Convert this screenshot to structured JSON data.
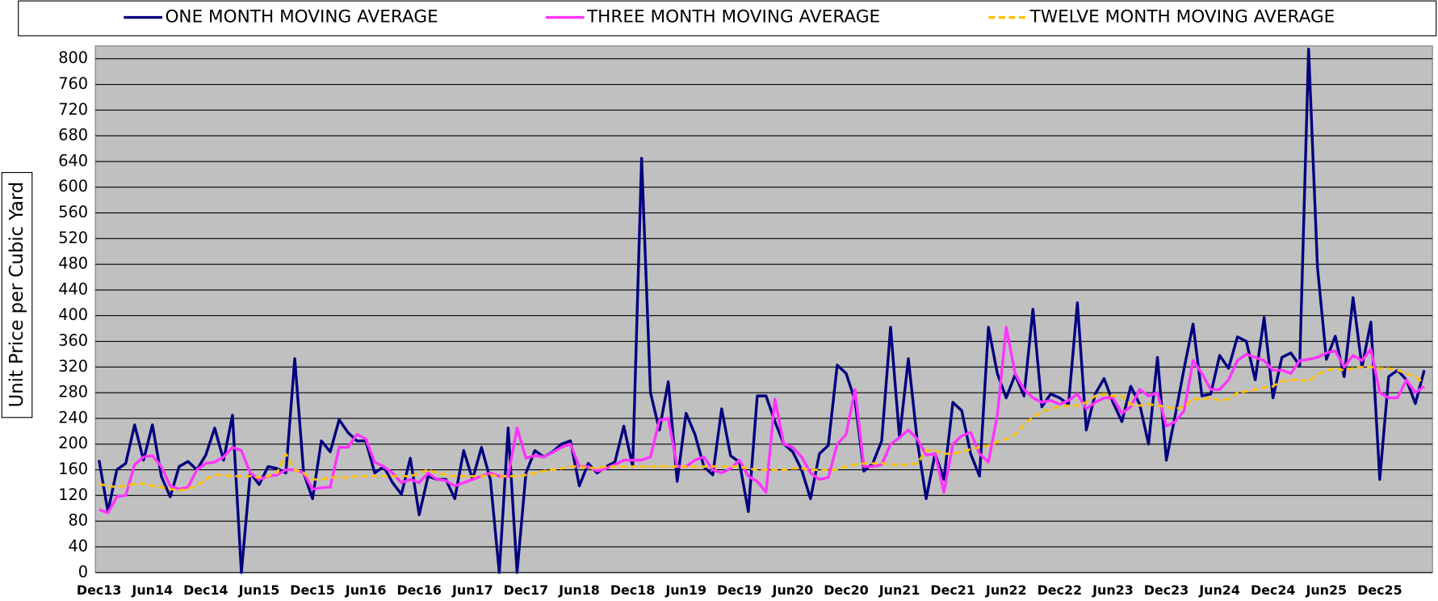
{
  "chart_data": {
    "type": "line",
    "y_label": "Unit Price per Cubic Yard",
    "categories": [
      "Dec13",
      null,
      null,
      null,
      null,
      null,
      "Jun14",
      null,
      null,
      null,
      null,
      null,
      "Dec14",
      null,
      null,
      null,
      null,
      null,
      "Jun15",
      null,
      null,
      null,
      null,
      null,
      "Dec15",
      null,
      null,
      null,
      null,
      null,
      "Jun16",
      null,
      null,
      null,
      null,
      null,
      "Dec16",
      null,
      null,
      null,
      null,
      null,
      "Jun17",
      null,
      null,
      null,
      null,
      null,
      "Dec17",
      null,
      null,
      null,
      null,
      null,
      "Jun18",
      null,
      null,
      null,
      null,
      null,
      "Dec18",
      null,
      null,
      null,
      null,
      null,
      "Jun19",
      null,
      null,
      null,
      null,
      null,
      "Dec19",
      null,
      null,
      null,
      null,
      null,
      "Jun20",
      null,
      null,
      null,
      null,
      null,
      "Dec20",
      null,
      null,
      null,
      null,
      null,
      "Jun21",
      null,
      null,
      null,
      null,
      null,
      "Dec21",
      null,
      null,
      null,
      null,
      null,
      "Jun22",
      null,
      null,
      null,
      null,
      null,
      "Dec22",
      null,
      null,
      null,
      null,
      null,
      "Jun23",
      null,
      null,
      null,
      null,
      null,
      "Dec23",
      null,
      null,
      null,
      null,
      null,
      "Jun24",
      null,
      null,
      null,
      null,
      null,
      "Dec24",
      null,
      null,
      null,
      null,
      null,
      "Jun25",
      null,
      null,
      null,
      null,
      null,
      "Dec25",
      null,
      null,
      null,
      null,
      null
    ],
    "series": [
      {
        "name": "ONE MONTH MOVING AVERAGE",
        "color": "#000080",
        "dashed": false,
        "values": [
          175,
          95,
          160,
          170,
          230,
          175,
          230,
          150,
          118,
          165,
          173,
          160,
          183,
          225,
          175,
          245,
          0,
          155,
          137,
          165,
          162,
          155,
          333,
          155,
          115,
          205,
          188,
          238,
          218,
          205,
          205,
          155,
          165,
          140,
          122,
          178,
          90,
          150,
          145,
          145,
          115,
          190,
          145,
          195,
          145,
          0,
          225,
          0,
          155,
          190,
          180,
          188,
          200,
          205,
          135,
          170,
          155,
          165,
          172,
          228,
          165,
          645,
          280,
          222,
          297,
          142,
          248,
          215,
          165,
          152,
          255,
          182,
          172,
          95,
          275,
          275,
          235,
          200,
          188,
          160,
          115,
          185,
          198,
          323,
          310,
          268,
          158,
          170,
          205,
          382,
          210,
          333,
          205,
          115,
          185,
          145,
          265,
          252,
          185,
          150,
          382,
          310,
          272,
          308,
          275,
          410,
          258,
          278,
          272,
          262,
          420,
          222,
          278,
          302,
          265,
          235,
          290,
          262,
          200,
          335,
          175,
          245,
          318,
          387,
          275,
          278,
          338,
          318,
          367,
          360,
          300,
          397,
          272,
          335,
          342,
          322,
          815,
          475,
          332,
          368,
          305,
          428,
          320,
          390,
          145,
          305,
          315,
          300,
          263,
          315
        ]
      },
      {
        "name": "THREE MONTH MOVING AVERAGE",
        "color": "#ff33ff",
        "dashed": false,
        "values": [
          98,
          93,
          118,
          120,
          168,
          180,
          182,
          165,
          135,
          130,
          133,
          160,
          170,
          172,
          180,
          195,
          190,
          155,
          145,
          150,
          152,
          160,
          160,
          155,
          130,
          132,
          133,
          195,
          195,
          215,
          208,
          172,
          165,
          155,
          140,
          145,
          140,
          155,
          145,
          143,
          135,
          140,
          145,
          150,
          155,
          150,
          150,
          225,
          178,
          182,
          180,
          187,
          195,
          200,
          165,
          165,
          158,
          162,
          168,
          175,
          175,
          175,
          180,
          237,
          240,
          165,
          165,
          175,
          180,
          160,
          155,
          162,
          175,
          150,
          142,
          125,
          270,
          200,
          195,
          180,
          155,
          145,
          148,
          200,
          215,
          285,
          165,
          165,
          168,
          200,
          210,
          222,
          208,
          183,
          185,
          125,
          200,
          213,
          218,
          185,
          172,
          245,
          382,
          310,
          285,
          272,
          265,
          268,
          262,
          268,
          278,
          255,
          265,
          272,
          272,
          248,
          258,
          285,
          275,
          280,
          228,
          235,
          252,
          330,
          310,
          285,
          285,
          300,
          330,
          340,
          335,
          330,
          315,
          315,
          310,
          330,
          332,
          335,
          342,
          345,
          320,
          338,
          330,
          348,
          280,
          272,
          272,
          300,
          280,
          290
        ]
      },
      {
        "name": "TWELVE MONTH MOVING AVERAGE",
        "color": "#ffc000",
        "dashed": true,
        "values": [
          138,
          135,
          133,
          135,
          138,
          138,
          135,
          133,
          130,
          128,
          130,
          135,
          145,
          152,
          152,
          150,
          150,
          150,
          148,
          150,
          155,
          185,
          160,
          155,
          145,
          145,
          148,
          148,
          148,
          150,
          150,
          150,
          150,
          150,
          150,
          150,
          155,
          160,
          155,
          152,
          150,
          150,
          150,
          150,
          152,
          150,
          150,
          150,
          152,
          155,
          158,
          160,
          162,
          165,
          165,
          163,
          163,
          165,
          165,
          165,
          165,
          165,
          165,
          165,
          165,
          165,
          165,
          165,
          165,
          165,
          165,
          165,
          165,
          162,
          160,
          160,
          160,
          160,
          162,
          162,
          160,
          160,
          160,
          160,
          165,
          168,
          170,
          170,
          170,
          168,
          168,
          168,
          170,
          190,
          190,
          185,
          185,
          188,
          192,
          195,
          198,
          203,
          208,
          215,
          230,
          242,
          250,
          255,
          258,
          260,
          260,
          265,
          275,
          278,
          275,
          275,
          262,
          260,
          262,
          260,
          258,
          255,
          258,
          270,
          270,
          272,
          268,
          270,
          280,
          282,
          285,
          288,
          290,
          298,
          300,
          300,
          298,
          308,
          315,
          318,
          315,
          318,
          320,
          320,
          318,
          318,
          315,
          310,
          305,
          295
        ]
      }
    ],
    "ylim": [
      0,
      820
    ],
    "yticks": [
      0,
      40,
      80,
      120,
      160,
      200,
      240,
      280,
      320,
      360,
      400,
      440,
      480,
      520,
      560,
      600,
      640,
      680,
      720,
      760,
      800
    ],
    "grid": true
  }
}
